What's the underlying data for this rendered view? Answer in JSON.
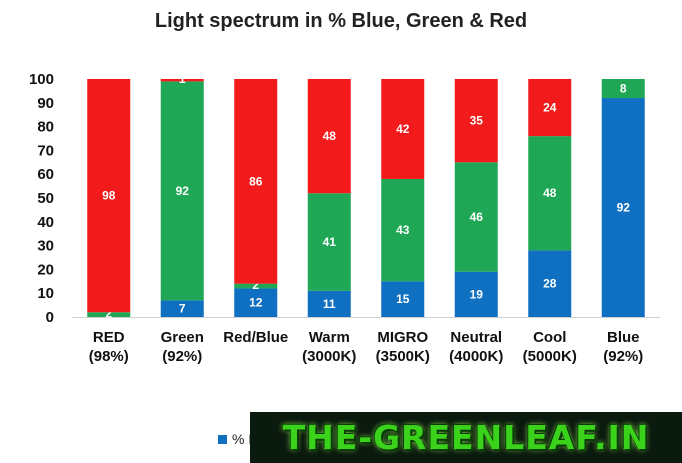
{
  "chart_data": {
    "type": "bar",
    "stacked": true,
    "title": "Light spectrum in % Blue, Green & Red",
    "categories": [
      [
        "RED",
        "(98%)"
      ],
      [
        "Green",
        "(92%)"
      ],
      [
        "Red/Blue",
        ""
      ],
      [
        "Warm",
        "(3000K)"
      ],
      [
        "MIGRO",
        "(3500K)"
      ],
      [
        "Neutral",
        "(4000K)"
      ],
      [
        "Cool",
        "(5000K)"
      ],
      [
        "Blue",
        "(92%)"
      ]
    ],
    "series": [
      {
        "color": "#0f6fc0",
        "values": [
          0,
          7,
          12,
          11,
          15,
          19,
          28,
          92
        ],
        "labels": [
          "",
          "7",
          "12",
          "11",
          "15",
          "19",
          "28",
          "92"
        ]
      },
      {
        "color": "#1fa756",
        "values": [
          2,
          92,
          2,
          41,
          43,
          46,
          48,
          8
        ],
        "labels": [
          "2",
          "92",
          "2",
          "41",
          "43",
          "46",
          "48",
          "8"
        ]
      },
      {
        "color": "#f21a1a",
        "values": [
          98,
          1,
          86,
          48,
          42,
          35,
          24,
          0
        ],
        "labels": [
          "98",
          "1",
          "86",
          "48",
          "42",
          "35",
          "24",
          ""
        ]
      }
    ],
    "ylim": [
      0,
      100
    ],
    "yticks": [
      0,
      10,
      20,
      30,
      40,
      50,
      60,
      70,
      80,
      90,
      100
    ],
    "grid": false,
    "legend": "bottom"
  },
  "legend": {
    "visible_text": "% B",
    "color": "#0f6fc0"
  },
  "watermark": {
    "text": "THE-GREENLEAF.IN"
  }
}
